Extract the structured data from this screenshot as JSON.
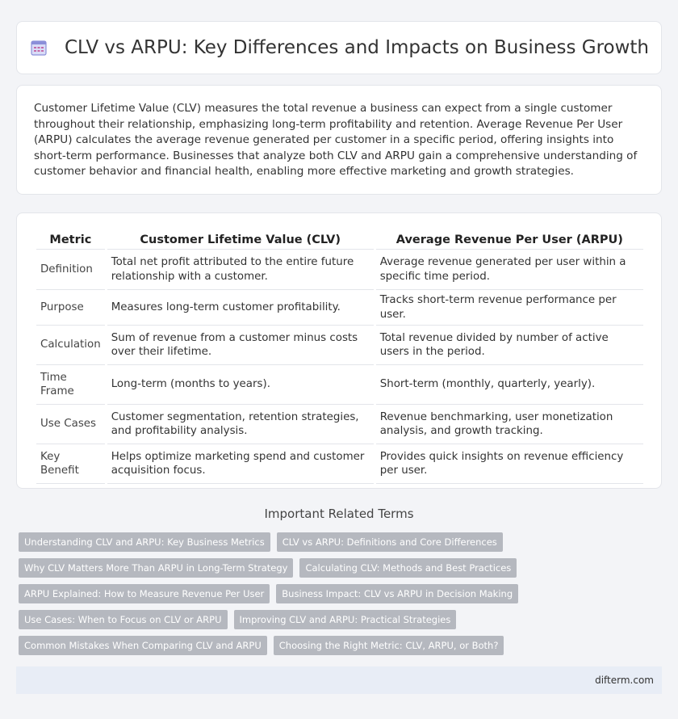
{
  "header": {
    "title": "CLV vs ARPU: Key Differences and Impacts on Business Growth",
    "icon": "calendar-document-icon"
  },
  "intro": "Customer Lifetime Value (CLV) measures the total revenue a business can expect from a single customer throughout their relationship, emphasizing long-term profitability and retention. Average Revenue Per User (ARPU) calculates the average revenue generated per customer in a specific period, offering insights into short-term performance. Businesses that analyze both CLV and ARPU gain a comprehensive understanding of customer behavior and financial health, enabling more effective marketing and growth strategies.",
  "table": {
    "headers": [
      "Metric",
      "Customer Lifetime Value (CLV)",
      "Average Revenue Per User (ARPU)"
    ],
    "rows": [
      [
        "Definition",
        "Total net profit attributed to the entire future relationship with a customer.",
        "Average revenue generated per user within a specific time period."
      ],
      [
        "Purpose",
        "Measures long-term customer profitability.",
        "Tracks short-term revenue performance per user."
      ],
      [
        "Calculation",
        "Sum of revenue from a customer minus costs over their lifetime.",
        "Total revenue divided by number of active users in the period."
      ],
      [
        "Time Frame",
        "Long-term (months to years).",
        "Short-term (monthly, quarterly, yearly)."
      ],
      [
        "Use Cases",
        "Customer segmentation, retention strategies, and profitability analysis.",
        "Revenue benchmarking, user monetization analysis, and growth tracking."
      ],
      [
        "Key Benefit",
        "Helps optimize marketing spend and customer acquisition focus.",
        "Provides quick insights on revenue efficiency per user."
      ]
    ]
  },
  "related": {
    "title": "Important Related Terms",
    "tags": [
      [
        "Understanding CLV and ARPU: Key Business Metrics",
        "CLV vs ARPU: Definitions and Core Differences"
      ],
      [
        "Why CLV Matters More Than ARPU in Long-Term Strategy",
        "Calculating CLV: Methods and Best Practices"
      ],
      [
        "ARPU Explained: How to Measure Revenue Per User",
        "Business Impact: CLV vs ARPU in Decision Making"
      ],
      [
        "Use Cases: When to Focus on CLV or ARPU",
        "Improving CLV and ARPU: Practical Strategies"
      ],
      [
        "Common Mistakes When Comparing CLV and ARPU",
        "Choosing the Right Metric: CLV, ARPU, or Both?"
      ]
    ]
  },
  "footer": {
    "site": "difterm.com"
  }
}
